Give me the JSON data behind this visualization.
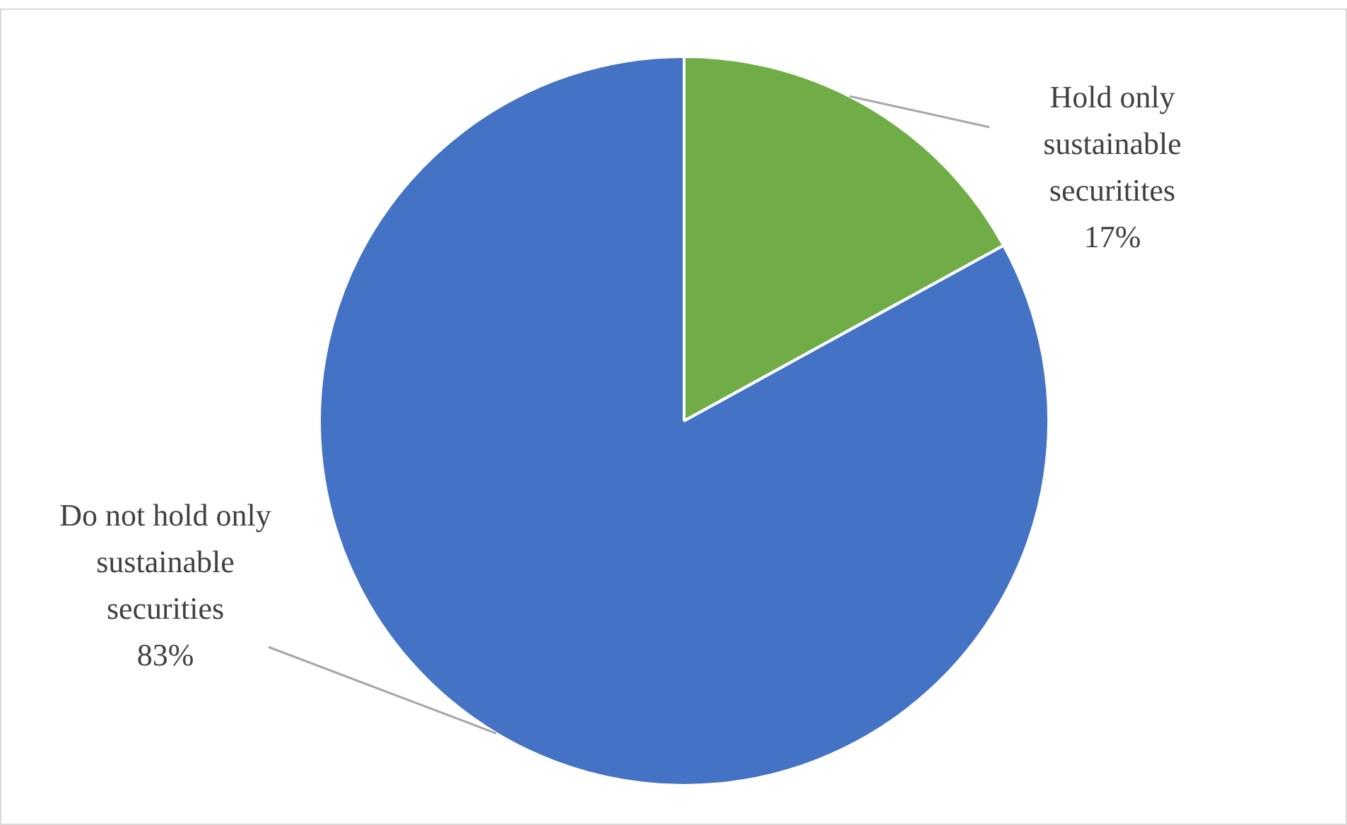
{
  "chart_data": {
    "type": "pie",
    "categories": [
      "Hold only sustainable securitites",
      "Do not hold only sustainable securities"
    ],
    "values": [
      17,
      83
    ],
    "colors": [
      "#70ad47",
      "#4472c4"
    ],
    "value_labels": [
      "17%",
      "83%"
    ],
    "legend": false
  }
}
